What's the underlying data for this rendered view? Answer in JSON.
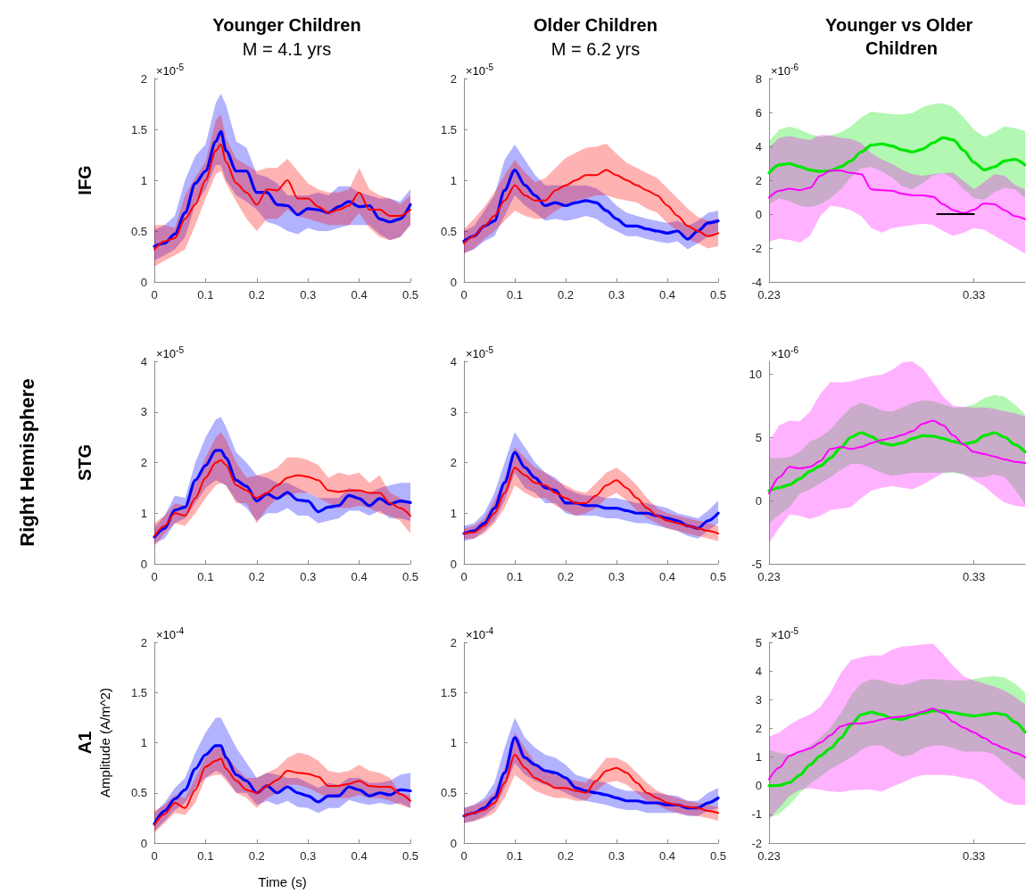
{
  "chart_data": [
    {
      "type": "line",
      "title": "Younger Children",
      "subtitle": "M = 4.1 yrs",
      "annotations": [
        "×10$^{-5}$",
        "IFG"
      ],
      "x": [
        0,
        0.02,
        0.04,
        0.06,
        0.08,
        0.1,
        0.12,
        0.13,
        0.14,
        0.16,
        0.18,
        0.2,
        0.22,
        0.24,
        0.26,
        0.28,
        0.3,
        0.32,
        0.34,
        0.36,
        0.38,
        0.4,
        0.42,
        0.44,
        0.46,
        0.48,
        0.5
      ],
      "xlim": [
        0,
        0.5
      ],
      "xticks": [
        0,
        0.1,
        0.2,
        0.3,
        0.4,
        0.5
      ],
      "ylim": [
        0,
        2
      ],
      "yticks": [
        0,
        0.5,
        1,
        1.5,
        2
      ],
      "series": [
        {
          "color": "#0000ff",
          "values": [
            0.35,
            0.38,
            0.47,
            0.68,
            0.97,
            1.09,
            1.38,
            1.48,
            1.29,
            1.09,
            1.09,
            0.88,
            0.88,
            0.76,
            0.75,
            0.66,
            0.72,
            0.71,
            0.68,
            0.74,
            0.79,
            0.74,
            0.75,
            0.62,
            0.59,
            0.62,
            0.76
          ],
          "upper": [
            0.51,
            0.56,
            0.65,
            1.0,
            1.24,
            1.35,
            1.76,
            1.85,
            1.74,
            1.38,
            1.32,
            1.06,
            1.03,
            0.97,
            0.85,
            0.85,
            0.85,
            0.88,
            0.85,
            0.94,
            0.94,
            0.88,
            0.85,
            0.82,
            0.82,
            0.79,
            0.91
          ],
          "lower": [
            0.21,
            0.26,
            0.32,
            0.44,
            0.76,
            0.91,
            1.15,
            1.15,
            1.0,
            0.85,
            0.79,
            0.71,
            0.59,
            0.56,
            0.5,
            0.47,
            0.53,
            0.5,
            0.5,
            0.53,
            0.56,
            0.56,
            0.56,
            0.47,
            0.41,
            0.44,
            0.56
          ]
        },
        {
          "color": "#ff0000",
          "values": [
            0.32,
            0.4,
            0.43,
            0.62,
            0.76,
            1.0,
            1.29,
            1.35,
            1.18,
            0.97,
            0.88,
            0.76,
            0.91,
            0.9,
            1.0,
            0.82,
            0.82,
            0.74,
            0.68,
            0.71,
            0.75,
            0.88,
            0.71,
            0.71,
            0.65,
            0.65,
            0.71
          ],
          "upper": [
            0.56,
            0.56,
            0.53,
            0.85,
            1.03,
            1.18,
            1.59,
            1.65,
            1.41,
            1.21,
            1.15,
            1.09,
            1.12,
            1.12,
            1.21,
            1.09,
            0.97,
            0.91,
            0.88,
            0.88,
            0.91,
            1.12,
            0.91,
            0.85,
            0.82,
            0.76,
            0.85
          ],
          "lower": [
            0.15,
            0.21,
            0.26,
            0.32,
            0.56,
            0.82,
            1.06,
            1.09,
            0.97,
            0.79,
            0.62,
            0.5,
            0.62,
            0.62,
            0.71,
            0.65,
            0.62,
            0.59,
            0.56,
            0.56,
            0.56,
            0.68,
            0.53,
            0.44,
            0.41,
            0.44,
            0.56
          ]
        }
      ]
    },
    {
      "type": "line",
      "title": "Older Children",
      "subtitle": "M = 6.2 yrs",
      "annotations": [
        "×10$^{-5}$"
      ],
      "x": [
        0,
        0.02,
        0.04,
        0.06,
        0.08,
        0.1,
        0.12,
        0.14,
        0.16,
        0.18,
        0.2,
        0.22,
        0.24,
        0.26,
        0.28,
        0.3,
        0.32,
        0.34,
        0.36,
        0.38,
        0.4,
        0.42,
        0.44,
        0.46,
        0.48,
        0.5
      ],
      "xlim": [
        0,
        0.5
      ],
      "xticks": [
        0,
        0.1,
        0.2,
        0.3,
        0.4,
        0.5
      ],
      "ylim": [
        0,
        2
      ],
      "yticks": [
        0,
        0.5,
        1,
        1.5,
        2
      ],
      "series": [
        {
          "color": "#0000ff",
          "values": [
            0.4,
            0.45,
            0.55,
            0.6,
            0.9,
            1.1,
            0.95,
            0.85,
            0.75,
            0.78,
            0.75,
            0.78,
            0.8,
            0.78,
            0.7,
            0.62,
            0.55,
            0.55,
            0.52,
            0.5,
            0.48,
            0.5,
            0.42,
            0.5,
            0.58,
            0.6
          ],
          "upper": [
            0.5,
            0.55,
            0.7,
            0.85,
            1.2,
            1.35,
            1.2,
            1.05,
            0.95,
            0.95,
            0.95,
            0.95,
            0.95,
            0.92,
            0.85,
            0.75,
            0.68,
            0.65,
            0.62,
            0.6,
            0.58,
            0.6,
            0.55,
            0.6,
            0.68,
            0.7
          ],
          "lower": [
            0.28,
            0.32,
            0.4,
            0.45,
            0.65,
            0.85,
            0.75,
            0.68,
            0.6,
            0.62,
            0.6,
            0.62,
            0.65,
            0.62,
            0.55,
            0.5,
            0.45,
            0.45,
            0.42,
            0.4,
            0.38,
            0.4,
            0.32,
            0.38,
            0.45,
            0.5
          ]
        },
        {
          "color": "#ff0000",
          "values": [
            0.38,
            0.45,
            0.55,
            0.65,
            0.8,
            0.95,
            0.85,
            0.8,
            0.8,
            0.9,
            0.95,
            1.0,
            1.05,
            1.05,
            1.1,
            1.05,
            1.0,
            0.95,
            0.9,
            0.85,
            0.75,
            0.65,
            0.55,
            0.5,
            0.45,
            0.48
          ],
          "upper": [
            0.52,
            0.62,
            0.74,
            0.88,
            1.05,
            1.2,
            1.08,
            0.98,
            1.02,
            1.12,
            1.22,
            1.27,
            1.32,
            1.33,
            1.36,
            1.26,
            1.17,
            1.12,
            1.07,
            1.02,
            0.92,
            0.82,
            0.72,
            0.64,
            0.6,
            0.62
          ],
          "lower": [
            0.28,
            0.33,
            0.42,
            0.5,
            0.6,
            0.7,
            0.65,
            0.62,
            0.62,
            0.7,
            0.75,
            0.8,
            0.82,
            0.85,
            0.85,
            0.82,
            0.8,
            0.78,
            0.72,
            0.68,
            0.58,
            0.5,
            0.42,
            0.38,
            0.33,
            0.35
          ]
        }
      ]
    },
    {
      "type": "line",
      "title": "Younger vs Older Children",
      "annotations": [
        "×10$^{-6}$"
      ],
      "x": [
        0.23,
        0.235,
        0.24,
        0.245,
        0.25,
        0.255,
        0.26,
        0.265,
        0.27,
        0.275,
        0.28,
        0.285,
        0.29,
        0.295,
        0.3,
        0.305,
        0.31,
        0.315,
        0.32,
        0.325,
        0.33,
        0.335,
        0.34,
        0.345,
        0.35,
        0.355
      ],
      "xlim": [
        0.23,
        0.355
      ],
      "xticks": [
        0.23,
        0.33
      ],
      "ylim": [
        -4,
        8
      ],
      "yticks": [
        -4,
        -2,
        0,
        2,
        4,
        6,
        8
      ],
      "series": [
        {
          "color": "#00e600",
          "values": [
            2.43,
            2.9,
            2.98,
            2.8,
            2.6,
            2.52,
            2.56,
            2.8,
            3.14,
            3.67,
            4.07,
            4.14,
            4.02,
            3.79,
            3.67,
            3.84,
            4.2,
            4.51,
            4.37,
            3.76,
            3.05,
            2.61,
            2.79,
            3.14,
            3.23,
            2.9
          ],
          "upper": [
            4.29,
            4.99,
            5.17,
            4.99,
            4.73,
            4.55,
            4.64,
            4.81,
            5.17,
            5.7,
            6.05,
            5.96,
            5.91,
            5.87,
            5.96,
            6.31,
            6.49,
            6.54,
            6.31,
            5.7,
            4.99,
            4.55,
            4.81,
            5.17,
            5.08,
            4.9
          ],
          "lower": [
            0.58,
            0.93,
            0.76,
            0.49,
            0.41,
            0.58,
            0.93,
            1.46,
            2.17,
            2.7,
            2.79,
            2.52,
            2.17,
            1.64,
            1.46,
            1.82,
            2.26,
            2.43,
            2.08,
            1.46,
            0.93,
            0.85,
            1.29,
            1.55,
            1.46,
            0.93
          ]
        },
        {
          "color": "#ff00ff",
          "values": [
            0.97,
            1.38,
            1.5,
            1.41,
            1.55,
            2.26,
            2.56,
            2.56,
            2.43,
            2.35,
            1.46,
            1.41,
            1.38,
            1.2,
            1.11,
            1.11,
            1.02,
            0.58,
            0.23,
            0.05,
            0.26,
            0.63,
            0.58,
            0.23,
            -0.12,
            -0.3
          ],
          "upper": [
            3.93,
            4.5,
            4.6,
            4.46,
            4.37,
            4.67,
            4.64,
            4.5,
            4.43,
            4.2,
            3.58,
            3.23,
            2.96,
            2.61,
            2.35,
            2.26,
            2.35,
            2.43,
            2.43,
            1.96,
            1.46,
            1.9,
            2.35,
            2.26,
            1.73,
            1.46
          ],
          "lower": [
            -1.62,
            -1.45,
            -1.53,
            -1.68,
            -1.27,
            -0.12,
            0.49,
            0.41,
            0.23,
            -0.12,
            -0.83,
            -1.09,
            -0.83,
            -0.74,
            -0.65,
            -0.56,
            -0.65,
            -1.0,
            -1.27,
            -1.09,
            -0.83,
            -0.92,
            -1.27,
            -1.62,
            -1.98,
            -2.33
          ]
        },
        {
          "color": "#000000",
          "x": [
            0.312,
            0.33
          ],
          "values": [
            0,
            0
          ]
        }
      ]
    },
    {
      "type": "line",
      "annotations": [
        "×10$^{-5}$",
        "STG",
        "Right Hemisphere"
      ],
      "x": [
        0,
        0.02,
        0.04,
        0.06,
        0.08,
        0.1,
        0.12,
        0.13,
        0.14,
        0.16,
        0.18,
        0.2,
        0.22,
        0.24,
        0.26,
        0.28,
        0.3,
        0.32,
        0.34,
        0.36,
        0.38,
        0.4,
        0.42,
        0.44,
        0.46,
        0.48,
        0.5
      ],
      "xlim": [
        0,
        0.5
      ],
      "xticks": [
        0,
        0.1,
        0.2,
        0.3,
        0.4,
        0.5
      ],
      "ylim": [
        0,
        4
      ],
      "yticks": [
        0,
        1,
        2,
        3,
        4
      ],
      "series": [
        {
          "color": "#0000ff",
          "values": [
            0.53,
            0.7,
            1.06,
            1.12,
            1.65,
            1.94,
            2.24,
            2.24,
            2.09,
            1.65,
            1.53,
            1.24,
            1.38,
            1.29,
            1.41,
            1.26,
            1.24,
            1.03,
            1.12,
            1.15,
            1.35,
            1.29,
            1.15,
            1.29,
            1.18,
            1.24,
            1.21
          ],
          "upper": [
            0.72,
            0.95,
            1.35,
            1.3,
            2.0,
            2.5,
            2.85,
            2.9,
            2.7,
            2.2,
            2.0,
            1.75,
            1.7,
            1.6,
            1.6,
            1.5,
            1.4,
            1.3,
            1.3,
            1.3,
            1.5,
            1.45,
            1.4,
            1.5,
            1.55,
            1.6,
            1.6
          ],
          "lower": [
            0.4,
            0.5,
            0.8,
            0.9,
            1.2,
            1.5,
            1.65,
            1.6,
            1.55,
            1.25,
            1.1,
            0.85,
            1.0,
            1.0,
            1.1,
            0.95,
            0.95,
            0.8,
            0.85,
            0.9,
            1.05,
            1.05,
            0.95,
            1.05,
            0.9,
            0.9,
            0.85
          ]
        },
        {
          "color": "#ff0000",
          "values": [
            0.55,
            0.75,
            1.0,
            0.95,
            1.3,
            1.7,
            2.0,
            2.05,
            1.95,
            1.55,
            1.45,
            1.3,
            1.4,
            1.55,
            1.7,
            1.75,
            1.72,
            1.65,
            1.45,
            1.42,
            1.45,
            1.45,
            1.4,
            1.4,
            1.2,
            1.1,
            0.95
          ],
          "upper": [
            0.8,
            0.95,
            1.2,
            1.15,
            1.6,
            2.1,
            2.5,
            2.6,
            2.45,
            2.0,
            1.7,
            1.75,
            1.8,
            1.9,
            2.1,
            2.1,
            2.05,
            1.95,
            1.7,
            1.8,
            1.75,
            1.8,
            1.6,
            1.75,
            1.4,
            1.3,
            1.2
          ],
          "lower": [
            0.35,
            0.6,
            0.8,
            0.75,
            1.0,
            1.3,
            1.55,
            1.6,
            1.55,
            1.2,
            1.2,
            0.8,
            1.1,
            1.3,
            1.35,
            1.4,
            1.4,
            1.3,
            1.2,
            1.1,
            1.1,
            1.15,
            1.1,
            1.0,
            0.95,
            0.85,
            0.6
          ]
        }
      ]
    },
    {
      "type": "line",
      "annotations": [
        "×10$^{-5}$"
      ],
      "x": [
        0,
        0.02,
        0.04,
        0.06,
        0.08,
        0.1,
        0.12,
        0.14,
        0.16,
        0.18,
        0.2,
        0.22,
        0.24,
        0.26,
        0.28,
        0.3,
        0.32,
        0.34,
        0.36,
        0.38,
        0.4,
        0.42,
        0.44,
        0.46,
        0.48,
        0.5
      ],
      "xlim": [
        0,
        0.5
      ],
      "xticks": [
        0,
        0.1,
        0.2,
        0.3,
        0.4,
        0.5
      ],
      "ylim": [
        0,
        4
      ],
      "yticks": [
        0,
        1,
        2,
        3,
        4
      ],
      "series": [
        {
          "color": "#0000ff",
          "values": [
            0.6,
            0.65,
            0.8,
            1.1,
            1.6,
            2.2,
            1.9,
            1.7,
            1.5,
            1.45,
            1.2,
            1.2,
            1.15,
            1.15,
            1.1,
            1.1,
            1.05,
            1.0,
            1.0,
            0.95,
            0.9,
            0.85,
            0.75,
            0.7,
            0.85,
            1.0
          ],
          "upper": [
            0.75,
            0.8,
            1.0,
            1.4,
            2.0,
            2.6,
            2.3,
            2.0,
            1.8,
            1.7,
            1.5,
            1.4,
            1.35,
            1.35,
            1.3,
            1.3,
            1.25,
            1.2,
            1.2,
            1.15,
            1.1,
            1.0,
            0.95,
            0.9,
            1.05,
            1.25
          ],
          "lower": [
            0.45,
            0.5,
            0.65,
            0.85,
            1.25,
            1.8,
            1.5,
            1.4,
            1.2,
            1.2,
            1.0,
            0.95,
            0.95,
            0.95,
            0.9,
            0.9,
            0.85,
            0.8,
            0.8,
            0.75,
            0.7,
            0.65,
            0.55,
            0.5,
            0.65,
            0.8
          ]
        },
        {
          "color": "#ff0000",
          "values": [
            0.6,
            0.62,
            0.75,
            1.0,
            1.4,
            1.9,
            1.75,
            1.6,
            1.55,
            1.4,
            1.3,
            1.2,
            1.2,
            1.35,
            1.55,
            1.65,
            1.5,
            1.3,
            1.1,
            0.95,
            0.85,
            0.8,
            0.75,
            0.7,
            0.65,
            0.6
          ],
          "upper": [
            0.7,
            0.75,
            0.9,
            1.25,
            1.7,
            2.3,
            2.1,
            1.9,
            1.8,
            1.65,
            1.55,
            1.45,
            1.4,
            1.6,
            1.8,
            1.9,
            1.75,
            1.55,
            1.3,
            1.1,
            1.0,
            0.95,
            0.9,
            0.85,
            0.8,
            0.75
          ],
          "lower": [
            0.5,
            0.5,
            0.6,
            0.8,
            1.1,
            1.55,
            1.4,
            1.3,
            1.3,
            1.15,
            1.05,
            0.95,
            1.0,
            1.1,
            1.3,
            1.4,
            1.25,
            1.05,
            0.9,
            0.8,
            0.7,
            0.65,
            0.6,
            0.55,
            0.5,
            0.45
          ]
        }
      ]
    },
    {
      "type": "line",
      "annotations": [
        "×10$^{-6}$"
      ],
      "x": [
        0.23,
        0.235,
        0.24,
        0.245,
        0.25,
        0.255,
        0.26,
        0.265,
        0.27,
        0.275,
        0.28,
        0.285,
        0.29,
        0.295,
        0.3,
        0.305,
        0.31,
        0.315,
        0.32,
        0.325,
        0.33,
        0.335,
        0.34,
        0.345,
        0.35,
        0.355
      ],
      "xlim": [
        0.23,
        0.355
      ],
      "xticks": [
        0.23,
        0.33
      ],
      "ylim": [
        -5,
        11
      ],
      "yticks": [
        -5,
        0,
        5,
        10
      ],
      "series": [
        {
          "color": "#00e600",
          "values": [
            0.78,
            1.01,
            1.25,
            1.72,
            2.31,
            2.73,
            3.36,
            4.19,
            5.01,
            5.36,
            5.05,
            4.54,
            4.38,
            4.54,
            4.89,
            5.13,
            5.08,
            4.89,
            4.66,
            4.47,
            4.61,
            5.13,
            5.36,
            5.01,
            4.42,
            3.84
          ],
          "upper": [
            3.36,
            3.36,
            3.44,
            3.84,
            4.66,
            5.01,
            5.6,
            6.54,
            7.36,
            7.72,
            7.48,
            7.13,
            7.01,
            7.36,
            7.72,
            7.91,
            7.84,
            7.6,
            7.36,
            7.36,
            7.6,
            8.07,
            8.35,
            8.19,
            7.6,
            6.78
          ],
          "lower": [
            -1.81,
            -1.11,
            -0.52,
            0.54,
            0.89,
            1.36,
            1.84,
            2.42,
            2.89,
            2.89,
            2.54,
            2.19,
            1.95,
            2.07,
            2.19,
            2.19,
            2.19,
            2.19,
            2.19,
            2.07,
            1.84,
            1.84,
            2.07,
            1.84,
            0.89,
            -0.28
          ]
        },
        {
          "color": "#ff00ff",
          "values": [
            0.54,
            1.84,
            2.66,
            2.54,
            2.66,
            3.13,
            4.07,
            4.24,
            4.07,
            4.24,
            4.54,
            4.78,
            4.94,
            5.18,
            5.48,
            6.07,
            6.31,
            5.95,
            5.13,
            4.42,
            3.84,
            3.67,
            3.48,
            3.25,
            3.06,
            2.96
          ],
          "upper": [
            4.66,
            5.95,
            6.31,
            6.26,
            7.01,
            8.42,
            9.36,
            9.32,
            9.41,
            9.65,
            9.84,
            9.95,
            10.31,
            10.9,
            11,
            10.42,
            9.36,
            8.19,
            7.48,
            7.41,
            7.36,
            7.36,
            7.25,
            7.06,
            6.89,
            6.66
          ],
          "lower": [
            -3.34,
            -2.16,
            -1.11,
            -1.22,
            -1.46,
            -1.22,
            -0.75,
            -0.64,
            -0.52,
            0.19,
            0.78,
            1.01,
            1.13,
            1.01,
            0.89,
            1.25,
            1.72,
            2.19,
            2.26,
            2.07,
            1.6,
            1.13,
            0.42,
            -0.16,
            -0.4,
            -0.52
          ]
        }
      ]
    },
    {
      "type": "line",
      "xlabel": "Time (s)",
      "ylabel": "Amplitude (A/m^2)",
      "annotations": [
        "×10$^{-4}$",
        "A1"
      ],
      "x": [
        0,
        0.02,
        0.04,
        0.06,
        0.08,
        0.1,
        0.12,
        0.13,
        0.14,
        0.16,
        0.18,
        0.2,
        0.22,
        0.24,
        0.26,
        0.28,
        0.3,
        0.32,
        0.34,
        0.36,
        0.38,
        0.4,
        0.42,
        0.44,
        0.46,
        0.48,
        0.5
      ],
      "xlim": [
        0,
        0.5
      ],
      "xticks": [
        0,
        0.1,
        0.2,
        0.3,
        0.4,
        0.5
      ],
      "ylim": [
        0,
        2
      ],
      "yticks": [
        0,
        0.5,
        1,
        1.5,
        2
      ],
      "series": [
        {
          "color": "#0000ff",
          "values": [
            0.19,
            0.32,
            0.44,
            0.53,
            0.74,
            0.88,
            0.97,
            0.97,
            0.85,
            0.68,
            0.62,
            0.5,
            0.57,
            0.5,
            0.56,
            0.5,
            0.47,
            0.41,
            0.47,
            0.47,
            0.56,
            0.53,
            0.47,
            0.5,
            0.48,
            0.53,
            0.52
          ],
          "upper": [
            0.3,
            0.4,
            0.55,
            0.65,
            0.9,
            1.1,
            1.25,
            1.25,
            1.15,
            0.95,
            0.8,
            0.65,
            0.7,
            0.68,
            0.65,
            0.65,
            0.6,
            0.55,
            0.6,
            0.58,
            0.65,
            0.65,
            0.6,
            0.6,
            0.62,
            0.68,
            0.7
          ],
          "lower": [
            0.12,
            0.22,
            0.33,
            0.4,
            0.55,
            0.65,
            0.72,
            0.7,
            0.65,
            0.5,
            0.5,
            0.38,
            0.42,
            0.38,
            0.42,
            0.36,
            0.35,
            0.3,
            0.35,
            0.35,
            0.43,
            0.4,
            0.38,
            0.4,
            0.38,
            0.4,
            0.35
          ]
        },
        {
          "color": "#ff0000",
          "values": [
            0.18,
            0.29,
            0.4,
            0.35,
            0.53,
            0.76,
            0.82,
            0.84,
            0.74,
            0.62,
            0.53,
            0.5,
            0.57,
            0.63,
            0.72,
            0.7,
            0.69,
            0.66,
            0.57,
            0.57,
            0.59,
            0.62,
            0.57,
            0.56,
            0.56,
            0.49,
            0.42
          ],
          "upper": [
            0.32,
            0.38,
            0.48,
            0.45,
            0.65,
            0.85,
            0.95,
            0.95,
            0.88,
            0.75,
            0.65,
            0.65,
            0.7,
            0.75,
            0.85,
            0.9,
            0.88,
            0.82,
            0.72,
            0.7,
            0.72,
            0.78,
            0.72,
            0.7,
            0.65,
            0.5,
            0.48
          ],
          "lower": [
            0.1,
            0.2,
            0.3,
            0.28,
            0.4,
            0.65,
            0.68,
            0.68,
            0.62,
            0.5,
            0.45,
            0.35,
            0.45,
            0.5,
            0.58,
            0.58,
            0.55,
            0.5,
            0.45,
            0.45,
            0.45,
            0.48,
            0.45,
            0.45,
            0.42,
            0.38,
            0.35
          ]
        }
      ]
    },
    {
      "type": "line",
      "annotations": [
        "×10$^{-4}$"
      ],
      "x": [
        0,
        0.02,
        0.04,
        0.06,
        0.08,
        0.1,
        0.12,
        0.14,
        0.16,
        0.18,
        0.2,
        0.22,
        0.24,
        0.26,
        0.28,
        0.3,
        0.32,
        0.34,
        0.36,
        0.38,
        0.4,
        0.42,
        0.44,
        0.46,
        0.48,
        0.5
      ],
      "xlim": [
        0,
        0.5
      ],
      "xticks": [
        0,
        0.1,
        0.2,
        0.3,
        0.4,
        0.5
      ],
      "ylim": [
        0,
        2
      ],
      "yticks": [
        0,
        0.5,
        1,
        1.5,
        2
      ],
      "series": [
        {
          "color": "#0000ff",
          "values": [
            0.27,
            0.3,
            0.35,
            0.45,
            0.7,
            1.05,
            0.85,
            0.78,
            0.72,
            0.7,
            0.65,
            0.55,
            0.52,
            0.5,
            0.48,
            0.45,
            0.42,
            0.42,
            0.4,
            0.4,
            0.38,
            0.38,
            0.35,
            0.35,
            0.4,
            0.45
          ],
          "upper": [
            0.35,
            0.38,
            0.45,
            0.6,
            0.95,
            1.25,
            1.05,
            0.95,
            0.88,
            0.85,
            0.78,
            0.68,
            0.65,
            0.62,
            0.6,
            0.55,
            0.52,
            0.52,
            0.5,
            0.5,
            0.48,
            0.47,
            0.42,
            0.42,
            0.5,
            0.55
          ],
          "lower": [
            0.2,
            0.22,
            0.27,
            0.35,
            0.55,
            0.8,
            0.68,
            0.62,
            0.58,
            0.55,
            0.5,
            0.45,
            0.42,
            0.4,
            0.38,
            0.35,
            0.33,
            0.33,
            0.3,
            0.3,
            0.3,
            0.3,
            0.27,
            0.27,
            0.32,
            0.35
          ]
        },
        {
          "color": "#ff0000",
          "values": [
            0.27,
            0.3,
            0.33,
            0.4,
            0.6,
            0.88,
            0.75,
            0.65,
            0.6,
            0.55,
            0.55,
            0.52,
            0.5,
            0.62,
            0.72,
            0.75,
            0.7,
            0.6,
            0.5,
            0.45,
            0.4,
            0.38,
            0.36,
            0.35,
            0.32,
            0.3
          ],
          "upper": [
            0.35,
            0.38,
            0.42,
            0.5,
            0.75,
            1.1,
            0.95,
            0.8,
            0.72,
            0.68,
            0.65,
            0.62,
            0.6,
            0.72,
            0.85,
            0.85,
            0.8,
            0.7,
            0.6,
            0.52,
            0.48,
            0.45,
            0.42,
            0.4,
            0.38,
            0.36
          ],
          "lower": [
            0.2,
            0.22,
            0.25,
            0.3,
            0.45,
            0.68,
            0.6,
            0.52,
            0.48,
            0.45,
            0.45,
            0.42,
            0.42,
            0.52,
            0.6,
            0.62,
            0.58,
            0.5,
            0.42,
            0.38,
            0.33,
            0.3,
            0.28,
            0.27,
            0.25,
            0.22
          ]
        }
      ]
    },
    {
      "type": "line",
      "annotations": [
        "×10$^{-5}$"
      ],
      "x": [
        0.23,
        0.235,
        0.24,
        0.245,
        0.25,
        0.255,
        0.26,
        0.265,
        0.27,
        0.275,
        0.28,
        0.285,
        0.29,
        0.295,
        0.3,
        0.305,
        0.31,
        0.315,
        0.32,
        0.325,
        0.33,
        0.335,
        0.34,
        0.345,
        0.35,
        0.355
      ],
      "xlim": [
        0.23,
        0.355
      ],
      "xticks": [
        0.23,
        0.33
      ],
      "ylim": [
        -2,
        5
      ],
      "yticks": [
        -2,
        -1,
        0,
        1,
        2,
        3,
        4,
        5
      ],
      "series": [
        {
          "color": "#00e600",
          "values": [
            0,
            0.01,
            0.11,
            0.37,
            0.73,
            1.04,
            1.3,
            1.66,
            2.12,
            2.48,
            2.56,
            2.48,
            2.35,
            2.31,
            2.43,
            2.53,
            2.61,
            2.61,
            2.55,
            2.48,
            2.43,
            2.48,
            2.53,
            2.48,
            2.22,
            1.86
          ],
          "upper": [
            1.25,
            1.14,
            1.09,
            1.19,
            1.4,
            1.66,
            2.02,
            2.53,
            3.15,
            3.56,
            3.72,
            3.67,
            3.56,
            3.51,
            3.61,
            3.72,
            3.72,
            3.69,
            3.67,
            3.67,
            3.72,
            3.79,
            3.82,
            3.77,
            3.56,
            3.25
          ],
          "lower": [
            -1.12,
            -0.97,
            -0.66,
            -0.25,
            0.06,
            0.32,
            0.58,
            0.78,
            0.99,
            1.25,
            1.4,
            1.4,
            1.19,
            1.01,
            1.09,
            1.3,
            1.4,
            1.4,
            1.3,
            1.19,
            1.19,
            1.19,
            1.09,
            0.78,
            0.47,
            0.16
          ]
        },
        {
          "color": "#ff00ff",
          "values": [
            0.22,
            0.63,
            1.04,
            1.19,
            1.3,
            1.5,
            1.76,
            2.07,
            2.17,
            2.17,
            2.22,
            2.31,
            2.38,
            2.41,
            2.48,
            2.58,
            2.69,
            2.53,
            2.22,
            2.02,
            1.86,
            1.66,
            1.45,
            1.3,
            1.14,
            0.99
          ],
          "upper": [
            1.71,
            1.86,
            2.12,
            2.33,
            2.48,
            2.74,
            3.25,
            3.92,
            4.38,
            4.48,
            4.54,
            4.54,
            4.74,
            4.85,
            4.88,
            4.92,
            4.95,
            4.59,
            4.17,
            3.82,
            3.67,
            3.56,
            3.46,
            3.31,
            3.1,
            2.84
          ],
          "lower": [
            -1.17,
            -0.76,
            -0.35,
            -0.14,
            -0.09,
            -0.14,
            -0.2,
            -0.23,
            -0.16,
            -0.14,
            -0.14,
            -0.2,
            -0.04,
            0.11,
            0.27,
            0.37,
            0.37,
            0.37,
            0.35,
            0.27,
            0.22,
            0.01,
            -0.3,
            -0.56,
            -0.66,
            -0.68
          ]
        }
      ]
    }
  ]
}
